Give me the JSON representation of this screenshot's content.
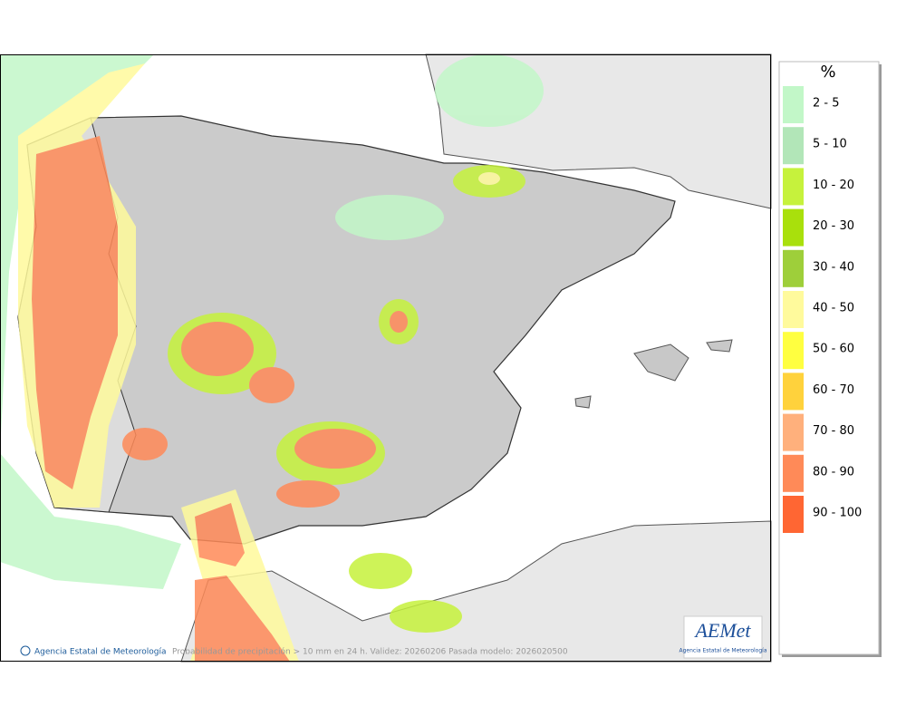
{
  "legend": {
    "title": "%",
    "items": [
      {
        "label": "2 - 5",
        "color": "#c2f7c8"
      },
      {
        "label": "5 - 10",
        "color": "#b2e6b8"
      },
      {
        "label": "10 - 20",
        "color": "#c6f23c"
      },
      {
        "label": "20 - 30",
        "color": "#a9e00c"
      },
      {
        "label": "30 - 40",
        "color": "#9ecf3a"
      },
      {
        "label": "40 - 50",
        "color": "#fffa9c"
      },
      {
        "label": "50 - 60",
        "color": "#ffff40"
      },
      {
        "label": "60 - 70",
        "color": "#ffd23c"
      },
      {
        "label": "70 - 80",
        "color": "#ffb07c"
      },
      {
        "label": "80 - 90",
        "color": "#ff8a58"
      },
      {
        "label": "90 - 100",
        "color": "#ff6633"
      }
    ]
  },
  "footer": {
    "agency": "Agencia Estatal de Meteorología",
    "caption": "Probabilidad de precipitación > 10 mm en 24 h. Validez: 20260206 Pasada modelo: 2026020500"
  },
  "logo": {
    "name": "AEMet",
    "agency": "Agencia Estatal de Meteorología"
  }
}
